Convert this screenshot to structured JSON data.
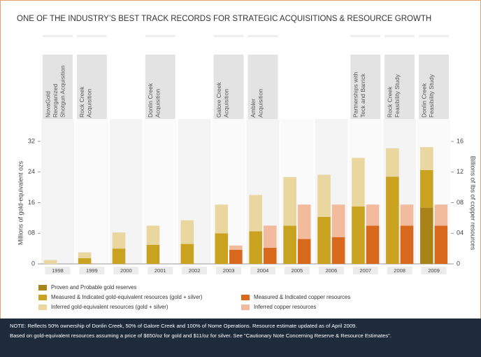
{
  "chart_data": {
    "type": "stacked-bar",
    "title": "ONE OF THE INDUSTRY’S BEST TRACK RECORDS FOR STRATEGIC ACQUISITIONS & RESOURCE GROWTH",
    "y_label": "Millions of gold-equivalent ozs",
    "y2_label": "Billions of lbs of copper resources",
    "categories": [
      "1998",
      "1999",
      "2000",
      "2001",
      "2002",
      "2003",
      "2004",
      "2005",
      "2006",
      "2007",
      "2008",
      "2009"
    ],
    "ylim": [
      0,
      32
    ],
    "yticks": [
      0,
      {
        "value": 8,
        "label": "08"
      },
      16,
      24,
      32
    ],
    "y2lim": [
      0,
      16
    ],
    "y2ticks": [
      0,
      {
        "value": 4,
        "label": "04"
      },
      {
        "value": 8,
        "label": "08"
      },
      12,
      16
    ],
    "series": [
      {
        "name": "Proven and Probable gold reserves",
        "color": "#a98318",
        "stack": "gold",
        "values": [
          null,
          null,
          null,
          null,
          null,
          null,
          null,
          null,
          null,
          null,
          null,
          14.7
        ]
      },
      {
        "name": "Measured & Indicated gold-equivalent resources (gold + silver)",
        "color": "#c9a21f",
        "stack": "gold",
        "values": [
          null,
          1.5,
          4,
          5,
          5.2,
          8,
          8.5,
          10,
          12.3,
          15,
          22.8,
          9.8
        ]
      },
      {
        "name": "Inferred gold-equivalent resources (gold + silver)",
        "color": "#e9d79f",
        "stack": "gold",
        "values": [
          1,
          1.5,
          4.2,
          5,
          6.2,
          7.5,
          9.5,
          12.7,
          11,
          12.7,
          7.4,
          6
        ]
      },
      {
        "name": "Measured & Indicated copper resources",
        "color": "#d8681b",
        "stack": "copper",
        "axis": "y2",
        "values": [
          null,
          null,
          null,
          null,
          null,
          1.85,
          2.1,
          3.25,
          3.5,
          5,
          5,
          5
        ]
      },
      {
        "name": "Inferred copper resources",
        "color": "#f2bb9d",
        "stack": "copper",
        "axis": "y2",
        "values": [
          null,
          null,
          null,
          null,
          null,
          0.55,
          2.9,
          4.5,
          4.25,
          2.75,
          2.75,
          2.75
        ]
      }
    ],
    "annotations": [
      {
        "category": "1998",
        "lines": [
          "NovaGold",
          "Reorganized",
          "Shotgun Acquisition"
        ]
      },
      {
        "category": "1999",
        "lines": [
          "Rock Creek",
          "Acquisition"
        ]
      },
      {
        "category": "2001",
        "lines": [
          "Donlin Creek",
          "Acquisition"
        ]
      },
      {
        "category": "2003",
        "lines": [
          "Galore Creek",
          "Acquisition"
        ]
      },
      {
        "category": "2004",
        "lines": [
          "Ambler",
          "Acquisition"
        ]
      },
      {
        "category": "2007",
        "lines": [
          "Partnerships with",
          "Teck and Barrick"
        ]
      },
      {
        "category": "2008",
        "lines": [
          "Rock Creek",
          "Feasibility Study"
        ]
      },
      {
        "category": "2009",
        "lines": [
          "Donlin Creek",
          "Feasibility Study"
        ]
      }
    ],
    "notes": [
      "NOTE: Reflects 50% ownership of Donlin Creek, 50% of Galore Creek and 100% of Nome Operations. Resource estimate updated as of April 2009.",
      "Based on gold-equivalent resources assuming a price of $650/oz for gold and $11/oz for silver. See \"Cautionary Note Concerning Reserve & Resource Estimates\"."
    ]
  }
}
